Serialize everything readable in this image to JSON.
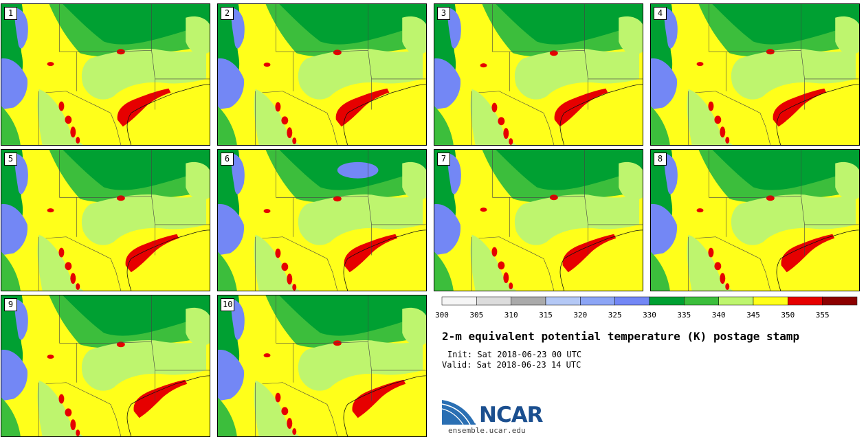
{
  "chart_data": {
    "type": "heatmap",
    "title": "2-m equivalent potential temperature (K) postage stamp",
    "init": "Init: Sat 2018-06-23 00 UTC",
    "valid": "Valid: Sat 2018-06-23 14 UTC",
    "units": "K",
    "members": [
      "1",
      "2",
      "3",
      "4",
      "5",
      "6",
      "7",
      "8",
      "9",
      "10"
    ],
    "colorbar": {
      "ticks": [
        "300",
        "305",
        "310",
        "315",
        "320",
        "325",
        "330",
        "335",
        "340",
        "345",
        "350",
        "355"
      ],
      "range": [
        300,
        360
      ],
      "colors": [
        "#f5f5f5",
        "#dcdcdc",
        "#aaaaaa",
        "#b4c8f5",
        "#8ca5f5",
        "#7387f5",
        "#00a032",
        "#3cbe3c",
        "#bef56e",
        "#ffff1a",
        "#e60000",
        "#8c0000"
      ]
    }
  },
  "branding": {
    "logo_text": "NCAR",
    "url": "ensemble.ucar.edu"
  }
}
